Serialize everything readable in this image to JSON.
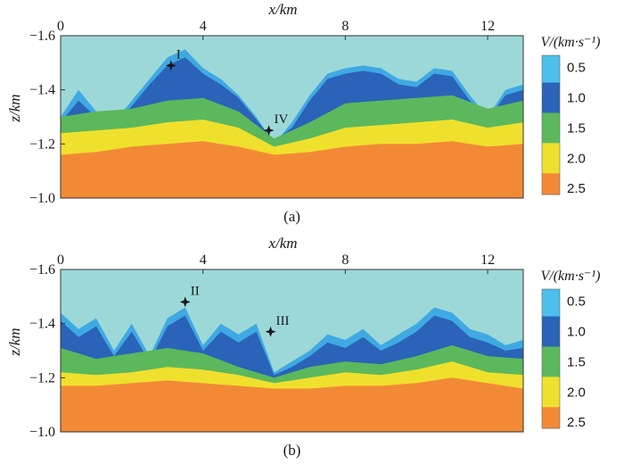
{
  "chart_data": [
    {
      "type": "heatmap",
      "panel_label": "(a)",
      "xlabel": "x/km",
      "ylabel": "z/km",
      "x_ticks": [
        "0",
        "4",
        "8",
        "12"
      ],
      "y_ticks": [
        "−1.6",
        "−1.4",
        "−1.2",
        "−1.0"
      ],
      "xlim": [
        0,
        13
      ],
      "ylim": [
        -1.6,
        -1.0
      ],
      "colorbar": {
        "title": "V/(km·s⁻¹)",
        "ticks": [
          "0.5",
          "1.0",
          "1.5",
          "2.0",
          "2.5"
        ],
        "range": [
          0.3,
          2.6
        ]
      },
      "layers": [
        {
          "name": "sky",
          "velocity": 0.3,
          "color": "#9dd8d8"
        },
        {
          "name": "surface",
          "velocity": 0.5,
          "color": "#3fa9e3",
          "thickness_km": 0.02,
          "x": [
            0,
            0.5,
            1.0,
            1.5,
            2.0,
            2.5,
            3.0,
            3.5,
            4.0,
            4.5,
            5.0,
            5.5,
            6.0,
            6.5,
            7.0,
            7.5,
            8.0,
            8.5,
            9.0,
            9.5,
            10.0,
            10.5,
            11.0,
            11.5,
            12.0,
            12.5,
            13.0
          ],
          "top": [
            1.3,
            1.4,
            1.32,
            1.28,
            1.36,
            1.44,
            1.52,
            1.55,
            1.48,
            1.44,
            1.38,
            1.3,
            1.2,
            1.28,
            1.38,
            1.46,
            1.48,
            1.49,
            1.48,
            1.44,
            1.43,
            1.48,
            1.47,
            1.38,
            1.3,
            1.4,
            1.42
          ]
        },
        {
          "name": "layer-1",
          "velocity": 1.0,
          "color": "#2a63b8",
          "x": [
            0,
            0.5,
            1.0,
            1.5,
            2.0,
            2.5,
            3.0,
            3.5,
            4.0,
            4.5,
            5.0,
            5.5,
            6.0,
            6.5,
            7.0,
            7.5,
            8.0,
            8.5,
            9.0,
            9.5,
            10.0,
            10.5,
            11.0,
            11.5,
            12.0,
            12.5,
            13.0
          ],
          "top": [
            1.28,
            1.36,
            1.3,
            1.27,
            1.34,
            1.42,
            1.49,
            1.52,
            1.46,
            1.42,
            1.37,
            1.29,
            1.21,
            1.26,
            1.36,
            1.44,
            1.46,
            1.47,
            1.46,
            1.42,
            1.41,
            1.46,
            1.45,
            1.36,
            1.29,
            1.38,
            1.4
          ]
        },
        {
          "name": "layer-2",
          "velocity": 1.5,
          "color": "#5cb85c",
          "x": [
            0,
            1,
            2,
            3,
            4,
            5,
            6,
            7,
            8,
            9,
            10,
            11,
            12,
            13
          ],
          "top": [
            1.3,
            1.32,
            1.33,
            1.36,
            1.37,
            1.32,
            1.22,
            1.28,
            1.35,
            1.36,
            1.37,
            1.38,
            1.33,
            1.36
          ]
        },
        {
          "name": "layer-3",
          "velocity": 2.0,
          "color": "#f0e02e",
          "x": [
            0,
            1,
            2,
            3,
            4,
            5,
            6,
            7,
            8,
            9,
            10,
            11,
            12,
            13
          ],
          "top": [
            1.24,
            1.25,
            1.26,
            1.28,
            1.29,
            1.26,
            1.19,
            1.22,
            1.26,
            1.27,
            1.28,
            1.29,
            1.26,
            1.28
          ]
        },
        {
          "name": "layer-4",
          "velocity": 2.5,
          "color": "#f28a35",
          "x": [
            0,
            1,
            2,
            3,
            4,
            5,
            6,
            7,
            8,
            9,
            10,
            11,
            12,
            13
          ],
          "top": [
            1.16,
            1.17,
            1.19,
            1.2,
            1.21,
            1.19,
            1.16,
            1.17,
            1.19,
            1.2,
            1.2,
            1.21,
            1.19,
            1.2
          ]
        }
      ],
      "markers": [
        {
          "label": "I",
          "x": 3.1,
          "z": -1.49
        },
        {
          "label": "IV",
          "x": 5.85,
          "z": -1.25
        }
      ]
    },
    {
      "type": "heatmap",
      "panel_label": "(b)",
      "xlabel": "x/km",
      "ylabel": "z/km",
      "x_ticks": [
        "0",
        "4",
        "8",
        "12"
      ],
      "y_ticks": [
        "−1.6",
        "−1.4",
        "−1.2",
        "−1.0"
      ],
      "xlim": [
        0,
        13
      ],
      "ylim": [
        -1.6,
        -1.0
      ],
      "colorbar": {
        "title": "V/(km·s⁻¹)",
        "ticks": [
          "0.5",
          "1.0",
          "1.5",
          "2.0",
          "2.5"
        ],
        "range": [
          0.3,
          2.6
        ]
      },
      "layers": [
        {
          "name": "sky",
          "velocity": 0.3,
          "color": "#9dd8d8"
        },
        {
          "name": "surface",
          "velocity": 0.5,
          "color": "#3fa9e3",
          "x": [
            0,
            0.5,
            1.0,
            1.5,
            2.0,
            2.5,
            3.0,
            3.5,
            4.0,
            4.5,
            5.0,
            5.5,
            6.0,
            6.5,
            7.0,
            7.5,
            8.0,
            8.5,
            9.0,
            9.5,
            10.0,
            10.5,
            11.0,
            11.5,
            12.0,
            12.5,
            13.0
          ],
          "top": [
            1.44,
            1.38,
            1.42,
            1.3,
            1.4,
            1.28,
            1.42,
            1.46,
            1.32,
            1.4,
            1.36,
            1.4,
            1.22,
            1.26,
            1.3,
            1.36,
            1.34,
            1.38,
            1.32,
            1.36,
            1.4,
            1.46,
            1.44,
            1.38,
            1.36,
            1.32,
            1.34
          ]
        },
        {
          "name": "layer-1",
          "velocity": 1.0,
          "color": "#2a63b8",
          "x": [
            0,
            0.5,
            1.0,
            1.5,
            2.0,
            2.5,
            3.0,
            3.5,
            4.0,
            4.5,
            5.0,
            5.5,
            6.0,
            6.5,
            7.0,
            7.5,
            8.0,
            8.5,
            9.0,
            9.5,
            10.0,
            10.5,
            11.0,
            11.5,
            12.0,
            12.5,
            13.0
          ],
          "top": [
            1.41,
            1.35,
            1.39,
            1.28,
            1.37,
            1.26,
            1.39,
            1.43,
            1.3,
            1.37,
            1.33,
            1.37,
            1.21,
            1.24,
            1.28,
            1.33,
            1.31,
            1.35,
            1.3,
            1.33,
            1.37,
            1.43,
            1.41,
            1.35,
            1.33,
            1.3,
            1.31
          ]
        },
        {
          "name": "layer-2",
          "velocity": 1.5,
          "color": "#5cb85c",
          "x": [
            0,
            1,
            2,
            3,
            4,
            5,
            6,
            7,
            8,
            9,
            10,
            11,
            12,
            13
          ],
          "top": [
            1.31,
            1.27,
            1.29,
            1.31,
            1.29,
            1.24,
            1.2,
            1.24,
            1.26,
            1.25,
            1.28,
            1.32,
            1.28,
            1.27
          ]
        },
        {
          "name": "layer-3",
          "velocity": 2.0,
          "color": "#f0e02e",
          "x": [
            0,
            1,
            2,
            3,
            4,
            5,
            6,
            7,
            8,
            9,
            10,
            11,
            12,
            13
          ],
          "top": [
            1.22,
            1.21,
            1.22,
            1.24,
            1.23,
            1.21,
            1.18,
            1.2,
            1.22,
            1.21,
            1.23,
            1.26,
            1.22,
            1.21
          ]
        },
        {
          "name": "layer-4",
          "velocity": 2.5,
          "color": "#f28a35",
          "x": [
            0,
            1,
            2,
            3,
            4,
            5,
            6,
            7,
            8,
            9,
            10,
            11,
            12,
            13
          ],
          "top": [
            1.17,
            1.17,
            1.18,
            1.19,
            1.18,
            1.17,
            1.16,
            1.16,
            1.17,
            1.17,
            1.18,
            1.2,
            1.18,
            1.16
          ]
        }
      ],
      "markers": [
        {
          "label": "II",
          "x": 3.5,
          "z": -1.48
        },
        {
          "label": "III",
          "x": 5.9,
          "z": -1.37
        }
      ]
    }
  ]
}
